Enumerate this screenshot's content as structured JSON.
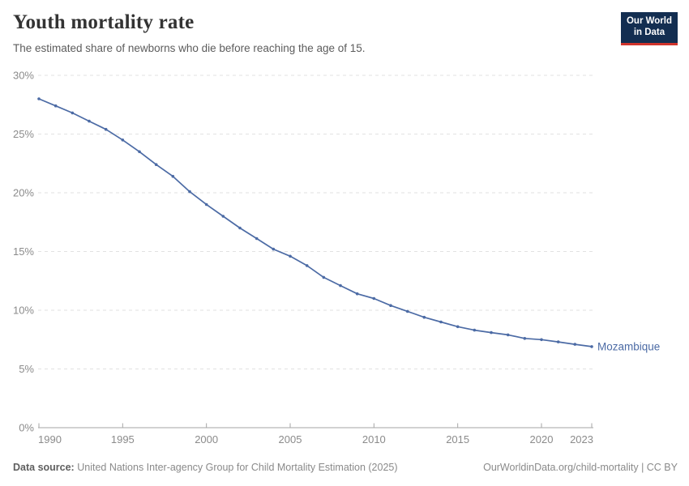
{
  "header": {
    "title": "Youth mortality rate",
    "subtitle": "The estimated share of newborns who die before reaching the age of 15.",
    "logo_line1": "Our World",
    "logo_line2": "in Data"
  },
  "footer": {
    "source_label": "Data source:",
    "source_text": "United Nations Inter-agency Group for Child Mortality Estimation (2025)",
    "link_text": "OurWorldinData.org/child-mortality | CC BY"
  },
  "colors": {
    "line": "#4C6BA5",
    "series_label": "#4C6BA5",
    "grid": "#e2e2e2",
    "axis": "#a6a6a6",
    "tick_label": "#8b8b8b",
    "logo_bg": "#132E51",
    "logo_accent": "#D0342C"
  },
  "chart_data": {
    "type": "line",
    "title": "Youth mortality rate",
    "xlabel": "",
    "ylabel": "",
    "ylim": [
      0,
      30
    ],
    "yticks": [
      0,
      5,
      10,
      15,
      20,
      25,
      30
    ],
    "ytick_suffix": "%",
    "xticks": [
      1990,
      1995,
      2000,
      2005,
      2010,
      2015,
      2020,
      2023
    ],
    "grid": "horizontal-dashed",
    "legend": "end-of-line-label",
    "x": [
      1990,
      1991,
      1992,
      1993,
      1994,
      1995,
      1996,
      1997,
      1998,
      1999,
      2000,
      2001,
      2002,
      2003,
      2004,
      2005,
      2006,
      2007,
      2008,
      2009,
      2010,
      2011,
      2012,
      2013,
      2014,
      2015,
      2016,
      2017,
      2018,
      2019,
      2020,
      2021,
      2022,
      2023
    ],
    "series": [
      {
        "name": "Mozambique",
        "color": "#4C6BA5",
        "values": [
          28.0,
          27.4,
          26.8,
          26.1,
          25.4,
          24.5,
          23.5,
          22.4,
          21.4,
          20.1,
          19.0,
          18.0,
          17.0,
          16.1,
          15.2,
          14.6,
          13.8,
          12.8,
          12.1,
          11.4,
          11.0,
          10.4,
          9.9,
          9.4,
          9.0,
          8.6,
          8.3,
          8.1,
          7.9,
          7.6,
          7.5,
          7.3,
          7.1,
          6.9
        ]
      }
    ]
  }
}
